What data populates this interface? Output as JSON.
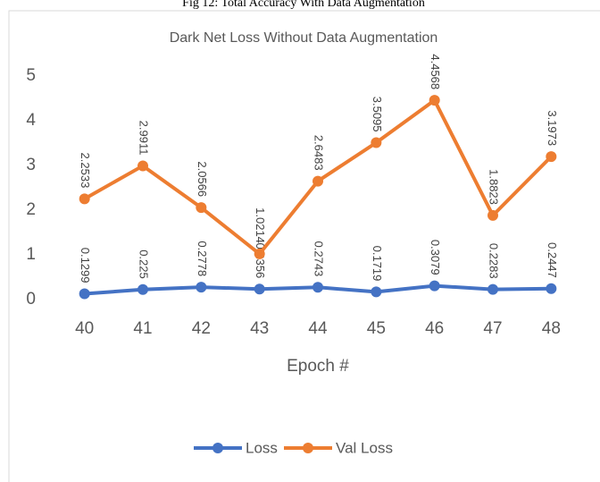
{
  "caption": "Fig 12: Total Accuracy With Data Augmentation",
  "chart_data": {
    "type": "line",
    "title": "Dark Net Loss Without Data Augmentation",
    "x_label": "Epoch #",
    "categories": [
      "40",
      "41",
      "42",
      "43",
      "44",
      "45",
      "46",
      "47",
      "48"
    ],
    "series": [
      {
        "name": "Loss",
        "color": "#4472c4",
        "values": [
          0.1299,
          0.225,
          0.2778,
          0.2356,
          0.2743,
          0.1719,
          0.3079,
          0.2283,
          0.2447
        ]
      },
      {
        "name": "Val Loss",
        "color": "#ed7d31",
        "values": [
          2.2533,
          2.9911,
          2.0566,
          1.0214,
          2.6483,
          3.5095,
          4.4568,
          1.8823,
          3.1973
        ]
      }
    ],
    "ylim": [
      0,
      5
    ],
    "yticks": [
      0,
      1,
      2,
      3,
      4,
      5
    ],
    "grid": false,
    "legend": "bottom"
  }
}
